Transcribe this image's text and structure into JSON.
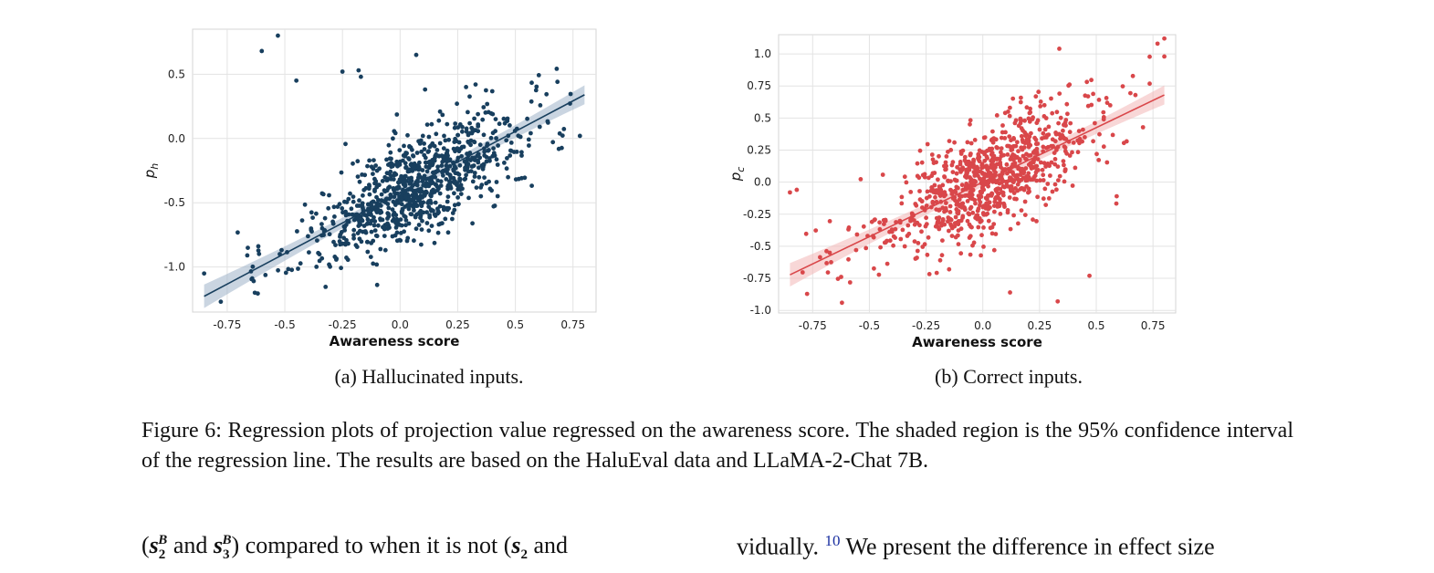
{
  "figure": {
    "panels": [
      {
        "subcaption": "(a) Hallucinated inputs.",
        "xlabel": "Awareness score",
        "ylabel_main": "p",
        "ylabel_sub": "h",
        "x_ticks": [
          "-0.75",
          "-0.5",
          "-0.25",
          "0.0",
          "0.25",
          "0.5",
          "0.75"
        ],
        "y_ticks": [
          "0.5",
          "0.0",
          "-0.5",
          "-1.0"
        ],
        "point_color": "#183f5e",
        "line_color": "#183f5e",
        "band_color": "#9fb3c8"
      },
      {
        "subcaption": "(b) Correct inputs.",
        "xlabel": "Awareness score",
        "ylabel_main": "p",
        "ylabel_sub": "c",
        "x_ticks": [
          "-0.75",
          "-0.5",
          "-0.25",
          "0.0",
          "0.25",
          "0.5",
          "0.75"
        ],
        "y_ticks": [
          "1.0",
          "0.75",
          "0.5",
          "0.25",
          "0.0",
          "-0.25",
          "-0.5",
          "-0.75",
          "-1.0"
        ],
        "point_color": "#d9474a",
        "line_color": "#d9474a",
        "band_color": "#f2b6b6"
      }
    ],
    "caption": "Figure 6: Regression plots of projection value regressed on the awareness score. The shaded region is the 95% confidence interval of the regression line. The results are based on the HaluEval data and LLaMA-2-Chat 7B."
  },
  "body_text": {
    "left_open": "(",
    "s2B_base": "s",
    "s2B_sub": "2",
    "s2B_sup": "B",
    "and1": " and ",
    "s3B_base": "s",
    "s3B_sub": "3",
    "s3B_sup": "B",
    "mid": ") compared to when it is not (",
    "s2_base": "s",
    "s2_sub": "2",
    "and2": " and",
    "right_start": "vidually. ",
    "footnote": "10",
    "right_end": " We present the difference in effect size"
  },
  "chart_data": [
    {
      "type": "scatter",
      "title": "",
      "xlabel": "Awareness score",
      "ylabel": "p_h",
      "xlim": [
        -0.9,
        0.85
      ],
      "ylim": [
        -1.35,
        0.85
      ],
      "grid": true,
      "regression": {
        "slope": 0.95,
        "intercept": -0.42,
        "ci_band": "95% confidence interval"
      },
      "highlighted_points": [
        {
          "x": -0.53,
          "y": 0.8
        },
        {
          "x": -0.6,
          "y": 0.68
        },
        {
          "x": -0.45,
          "y": 0.45
        },
        {
          "x": -0.25,
          "y": 0.52
        },
        {
          "x": -0.18,
          "y": 0.53
        },
        {
          "x": -0.17,
          "y": 0.48
        },
        {
          "x": 0.07,
          "y": 0.65
        },
        {
          "x": -0.63,
          "y": -1.2
        },
        {
          "x": -0.85,
          "y": -1.05
        },
        {
          "x": 0.78,
          "y": 0.02
        }
      ],
      "point_cloud": {
        "n": 900,
        "center_x": 0.08,
        "x_spread": 0.2,
        "noise_sd": 0.2
      }
    },
    {
      "type": "scatter",
      "title": "",
      "xlabel": "Awareness score",
      "ylabel": "p_c",
      "xlim": [
        -0.9,
        0.85
      ],
      "ylim": [
        -1.02,
        1.15
      ],
      "grid": true,
      "regression": {
        "slope": 0.85,
        "intercept": 0.0,
        "ci_band": "95% confidence interval"
      },
      "highlighted_points": [
        {
          "x": 0.8,
          "y": 1.12
        },
        {
          "x": 0.77,
          "y": 1.08
        },
        {
          "x": 0.8,
          "y": 0.98
        },
        {
          "x": -0.85,
          "y": -0.08
        },
        {
          "x": -0.82,
          "y": -0.06
        },
        {
          "x": 0.12,
          "y": -0.86
        },
        {
          "x": 0.33,
          "y": -0.93
        },
        {
          "x": 0.47,
          "y": -0.73
        },
        {
          "x": 0.59,
          "y": -0.11
        }
      ],
      "point_cloud": {
        "n": 900,
        "center_x": 0.02,
        "x_spread": 0.2,
        "noise_sd": 0.2
      }
    }
  ]
}
